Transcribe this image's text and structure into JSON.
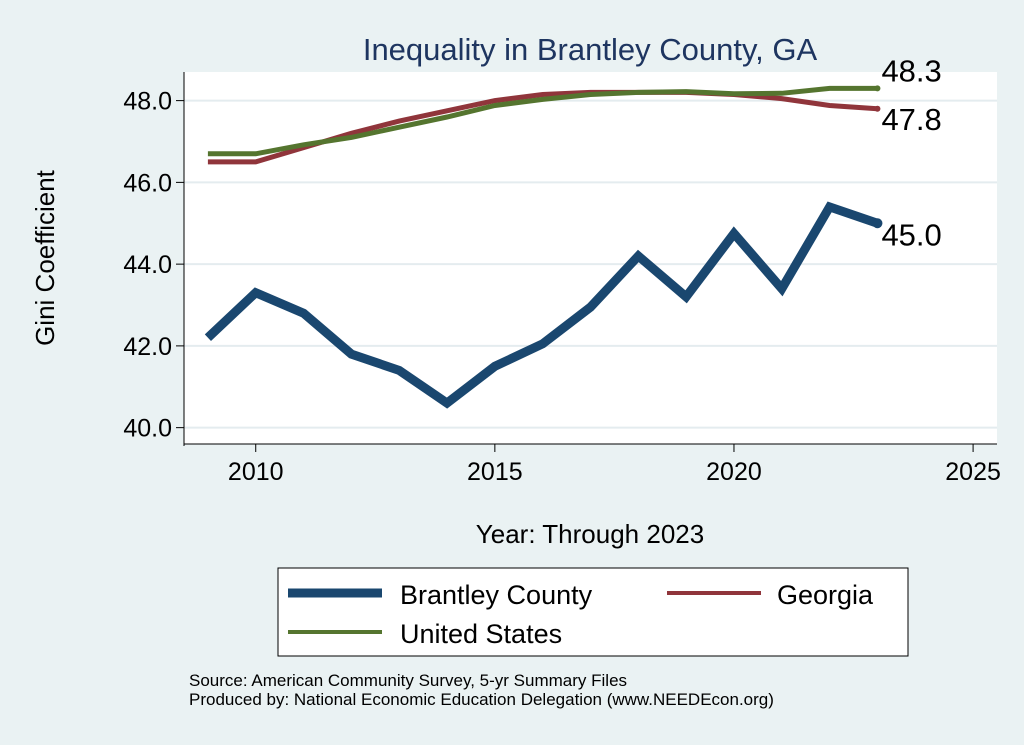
{
  "chart_data": {
    "type": "line",
    "title": "Inequality in Brantley County, GA",
    "xlabel": "Year: Through 2023",
    "ylabel": "Gini Coefficient",
    "xlim": [
      2008.5,
      2025.5
    ],
    "ylim": [
      39.6,
      48.7
    ],
    "x_ticks": [
      2010,
      2015,
      2020,
      2025
    ],
    "x_tick_labels": [
      "2010",
      "2015",
      "2020",
      "2025"
    ],
    "y_ticks": [
      40,
      42,
      44,
      46,
      48
    ],
    "y_tick_labels": [
      "40.0",
      "42.0",
      "44.0",
      "46.0",
      "48.0"
    ],
    "grid": true,
    "x": [
      2009,
      2010,
      2011,
      2012,
      2013,
      2014,
      2015,
      2016,
      2017,
      2018,
      2019,
      2020,
      2021,
      2022,
      2023
    ],
    "series": [
      {
        "name": "Brantley County",
        "color": "#1a476f",
        "values": [
          42.2,
          43.3,
          42.8,
          41.8,
          41.4,
          40.6,
          41.5,
          42.05,
          42.95,
          44.2,
          43.2,
          44.75,
          43.4,
          45.4,
          45.0
        ],
        "end_label": "45.0"
      },
      {
        "name": "Georgia",
        "color": "#90353b",
        "values": [
          46.5,
          46.5,
          46.85,
          47.2,
          47.5,
          47.75,
          48.0,
          48.15,
          48.2,
          48.2,
          48.2,
          48.15,
          48.05,
          47.88,
          47.8
        ],
        "end_label": "47.8"
      },
      {
        "name": "United States",
        "color": "#55752f",
        "values": [
          46.7,
          46.7,
          46.92,
          47.1,
          47.35,
          47.6,
          47.88,
          48.03,
          48.15,
          48.2,
          48.22,
          48.17,
          48.18,
          48.3,
          48.3
        ],
        "end_label": "48.3"
      }
    ],
    "legend": {
      "position": "bottom",
      "entries": [
        "Brantley County",
        "Georgia",
        "United States"
      ]
    },
    "notes": [
      "Source: American Community Survey, 5-yr Summary Files",
      "Produced by: National Economic Education Delegation (www.NEEDEcon.org)"
    ]
  },
  "colors": {
    "background": "#eaf2f3",
    "plot_area": "#ffffff",
    "title": "#1e3560",
    "grid": "#e4ecef"
  }
}
